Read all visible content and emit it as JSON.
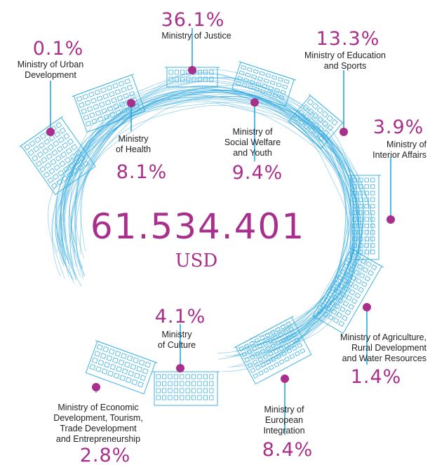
{
  "total": {
    "value": "61.534.401",
    "unit": "USD"
  },
  "colors": {
    "accent": "#a8308c",
    "line": "#29a5de"
  },
  "chart_data": {
    "type": "pie",
    "categories": [
      "Ministry of Justice",
      "Ministry of Education and Sports",
      "Ministry of Interior Affairs",
      "Ministry of Agriculture, Rural Development and Water Resources",
      "Ministry of European Integration",
      "Ministry of Economic Development, Tourism, Trade Development and Entrepreneurship",
      "Ministry of Culture",
      "Ministry of Social Welfare and Youth",
      "Ministry of Health",
      "Ministry of Urban Development"
    ],
    "values": [
      36.1,
      13.3,
      3.9,
      1.4,
      8.4,
      2.8,
      4.1,
      9.4,
      8.1,
      0.1
    ]
  },
  "items": [
    {
      "pct": "36.1%",
      "lines": [
        "Ministry of Justice"
      ]
    },
    {
      "pct": "13.3%",
      "lines": [
        "Ministry of Education",
        "and Sports"
      ]
    },
    {
      "pct": "3.9%",
      "lines": [
        "Ministry of",
        "Interior Affairs"
      ]
    },
    {
      "pct": "1.4%",
      "lines": [
        "Ministry of Agriculture,",
        "Rural Development",
        "and Water Resources"
      ]
    },
    {
      "pct": "8.4%",
      "lines": [
        "Ministry of",
        "European",
        "Integration"
      ]
    },
    {
      "pct": "2.8%",
      "lines": [
        "Ministry of Economic",
        "Development, Tourism,",
        "Trade Development",
        "and Entrepreneurship"
      ]
    },
    {
      "pct": "4.1%",
      "lines": [
        "Ministry",
        "of Culture"
      ]
    },
    {
      "pct": "9.4%",
      "lines": [
        "Ministry of",
        "Social Welfare",
        "and Youth"
      ]
    },
    {
      "pct": "8.1%",
      "lines": [
        "Ministry",
        "of Health"
      ]
    },
    {
      "pct": "0.1%",
      "lines": [
        "Ministry of Urban",
        "Development"
      ]
    }
  ]
}
